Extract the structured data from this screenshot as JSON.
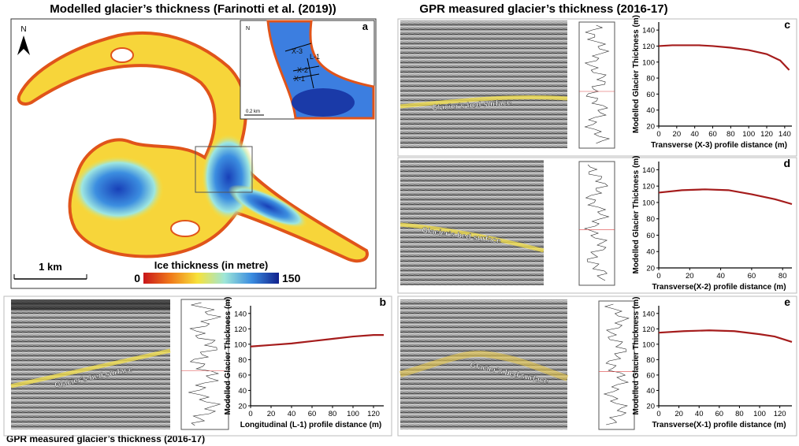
{
  "figure": {
    "map_title": "Modelled glacier’s thickness (Farinotti et al. (2019))",
    "gpr_title_right": "GPR measured glacier’s thickness (2016-17)",
    "gpr_title_bottom": "GPR measured glacier’s thickness (2016-17)",
    "map": {
      "panel_label": "a",
      "north": "N",
      "scale_bar": "1 km",
      "colorbar_title": "Ice thickness (in metre)",
      "colorbar_min": 0,
      "colorbar_max": 150,
      "inset_labels": [
        "X-3",
        "L-1",
        "X-2",
        "X-1"
      ],
      "inset_scale": "0.2 km"
    },
    "bed_labels": [
      "Glacier’s bed surface",
      "Glacier’s bed surface",
      "Glacier’s bed surface",
      "Glacier’s bed surface"
    ]
  },
  "chart_data": [
    {
      "type": "line",
      "label": "b",
      "x": [
        0,
        20,
        40,
        60,
        80,
        100,
        120,
        130
      ],
      "values": [
        97,
        99,
        101,
        104,
        107,
        110,
        112,
        112
      ],
      "color": "#a51c1c",
      "xlim": [
        0,
        130
      ],
      "ylim": [
        20,
        150
      ],
      "xticks": [
        0,
        20,
        40,
        60,
        80,
        100,
        120
      ],
      "yticks": [
        20,
        40,
        60,
        80,
        100,
        120,
        140
      ],
      "xlabel": "Longitudinal (L-1) profile distance (m)",
      "ylabel": "Modelled Glacier Thickness (m)"
    },
    {
      "type": "line",
      "label": "c",
      "x": [
        0,
        15,
        30,
        45,
        60,
        80,
        100,
        120,
        135,
        145
      ],
      "values": [
        120,
        121,
        121,
        121,
        120,
        118,
        115,
        110,
        102,
        90
      ],
      "color": "#a51c1c",
      "xlim": [
        0,
        148
      ],
      "ylim": [
        20,
        150
      ],
      "xticks": [
        0,
        20,
        40,
        60,
        80,
        100,
        120,
        140
      ],
      "yticks": [
        20,
        40,
        60,
        80,
        100,
        120,
        140
      ],
      "xlabel": "Transverse (X-3) profile distance (m)",
      "ylabel": "Modelled Glacier Thickness (m)"
    },
    {
      "type": "line",
      "label": "d",
      "x": [
        0,
        15,
        30,
        45,
        60,
        75,
        86
      ],
      "values": [
        112,
        115,
        116,
        115,
        110,
        104,
        98
      ],
      "color": "#a51c1c",
      "xlim": [
        0,
        86
      ],
      "ylim": [
        20,
        150
      ],
      "xticks": [
        0,
        20,
        40,
        60,
        80
      ],
      "yticks": [
        20,
        40,
        60,
        80,
        100,
        120,
        140
      ],
      "xlabel": "Transverse(X-2) profile distance (m)",
      "ylabel": "Modelled Glacier Thickness (m)"
    },
    {
      "type": "line",
      "label": "e",
      "x": [
        0,
        25,
        50,
        75,
        100,
        115,
        132
      ],
      "values": [
        115,
        117,
        118,
        117,
        113,
        110,
        103
      ],
      "color": "#a51c1c",
      "xlim": [
        0,
        132
      ],
      "ylim": [
        20,
        150
      ],
      "xticks": [
        0,
        20,
        40,
        60,
        80,
        100,
        120
      ],
      "yticks": [
        20,
        40,
        60,
        80,
        100,
        120,
        140
      ],
      "xlabel": "Transverse(X-1) profile distance (m)",
      "ylabel": "Modelled Glacier Thickness (m)"
    }
  ]
}
